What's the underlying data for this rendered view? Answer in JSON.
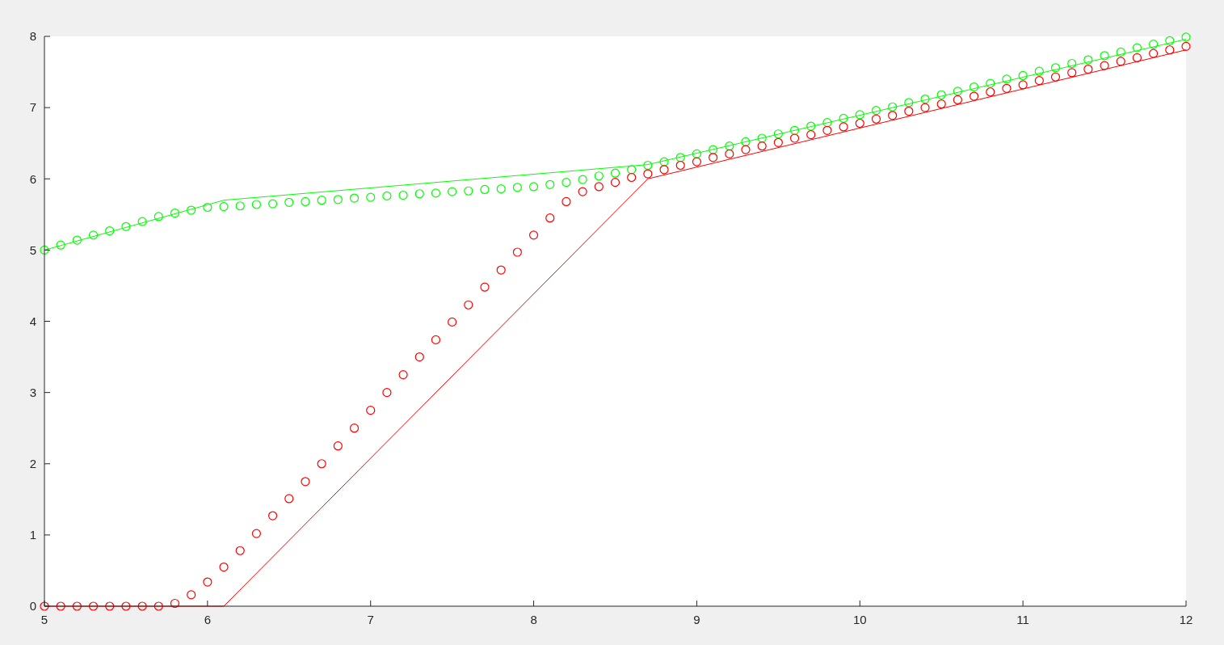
{
  "chart_data": {
    "type": "line",
    "xlim": [
      5,
      12
    ],
    "ylim": [
      0,
      8
    ],
    "xticks": [
      5,
      6,
      7,
      8,
      9,
      10,
      11,
      12
    ],
    "yticks": [
      0,
      1,
      2,
      3,
      4,
      5,
      6,
      7,
      8
    ],
    "grid": false,
    "series": [
      {
        "color": "#00ff00",
        "marker": "none",
        "line_style": "solid",
        "x": [
          5,
          6.1,
          8.7,
          12
        ],
        "values": [
          5,
          5.7,
          6.2,
          7.96
        ]
      },
      {
        "color": "#ff0000",
        "marker": "none",
        "line_style": "solid",
        "x": [
          5,
          6.1,
          8.7,
          12
        ],
        "values": [
          0,
          0,
          6,
          7.81
        ]
      },
      {
        "type": "scatter",
        "color": "#00ff00",
        "marker": "circle",
        "x": [
          5,
          5.1,
          5.2,
          5.3,
          5.4,
          5.5,
          5.6,
          5.7,
          5.8,
          5.9,
          6,
          6.1,
          6.2,
          6.3,
          6.4,
          6.5,
          6.6,
          6.7,
          6.8,
          6.9,
          7,
          7.1,
          7.2,
          7.3,
          7.4,
          7.5,
          7.6,
          7.7,
          7.8,
          7.9,
          8,
          8.1,
          8.2,
          8.3,
          8.4,
          8.5,
          8.6,
          8.7,
          8.8,
          8.9,
          9,
          9.1,
          9.2,
          9.3,
          9.4,
          9.5,
          9.6,
          9.7,
          9.8,
          9.9,
          10,
          10.1,
          10.2,
          10.3,
          10.4,
          10.5,
          10.6,
          10.7,
          10.8,
          10.9,
          11,
          11.1,
          11.2,
          11.3,
          11.4,
          11.5,
          11.6,
          11.7,
          11.8,
          11.9,
          12
        ],
        "values": [
          5.0,
          5.07,
          5.14,
          5.21,
          5.27,
          5.33,
          5.4,
          5.47,
          5.52,
          5.56,
          5.6,
          5.61,
          5.62,
          5.64,
          5.65,
          5.67,
          5.68,
          5.7,
          5.71,
          5.73,
          5.74,
          5.76,
          5.77,
          5.79,
          5.8,
          5.82,
          5.83,
          5.85,
          5.86,
          5.88,
          5.89,
          5.92,
          5.95,
          5.99,
          6.04,
          6.08,
          6.13,
          6.19,
          6.24,
          6.3,
          6.35,
          6.41,
          6.46,
          6.52,
          6.57,
          6.63,
          6.68,
          6.74,
          6.79,
          6.85,
          6.9,
          6.96,
          7.01,
          7.07,
          7.12,
          7.18,
          7.23,
          7.29,
          7.34,
          7.4,
          7.45,
          7.51,
          7.56,
          7.62,
          7.67,
          7.73,
          7.78,
          7.84,
          7.89,
          7.94,
          7.99
        ]
      },
      {
        "type": "scatter",
        "color": "#ff0000",
        "marker": "circle",
        "x": [
          5,
          5.1,
          5.2,
          5.3,
          5.4,
          5.5,
          5.6,
          5.7,
          5.8,
          5.9,
          6,
          6.1,
          6.2,
          6.3,
          6.4,
          6.5,
          6.6,
          6.7,
          6.8,
          6.9,
          7,
          7.1,
          7.2,
          7.3,
          7.4,
          7.5,
          7.6,
          7.7,
          7.8,
          7.9,
          8,
          8.1,
          8.2,
          8.3,
          8.4,
          8.5,
          8.6,
          8.7,
          8.8,
          8.9,
          9,
          9.1,
          9.2,
          9.3,
          9.4,
          9.5,
          9.6,
          9.7,
          9.8,
          9.9,
          10,
          10.1,
          10.2,
          10.3,
          10.4,
          10.5,
          10.6,
          10.7,
          10.8,
          10.9,
          11,
          11.1,
          11.2,
          11.3,
          11.4,
          11.5,
          11.6,
          11.7,
          11.8,
          11.9,
          12
        ],
        "values": [
          0,
          0,
          0,
          0,
          0,
          0,
          0,
          0,
          0.04,
          0.16,
          0.34,
          0.55,
          0.78,
          1.02,
          1.27,
          1.51,
          1.75,
          2.0,
          2.25,
          2.5,
          2.75,
          3.0,
          3.25,
          3.5,
          3.74,
          3.99,
          4.23,
          4.48,
          4.72,
          4.97,
          5.21,
          5.45,
          5.68,
          5.82,
          5.89,
          5.95,
          6.02,
          6.07,
          6.13,
          6.19,
          6.24,
          6.3,
          6.35,
          6.41,
          6.46,
          6.51,
          6.57,
          6.62,
          6.68,
          6.73,
          6.78,
          6.84,
          6.89,
          6.95,
          7.0,
          7.05,
          7.11,
          7.16,
          7.22,
          7.27,
          7.32,
          7.38,
          7.43,
          7.49,
          7.54,
          7.59,
          7.65,
          7.7,
          7.76,
          7.81,
          7.86
        ]
      }
    ]
  }
}
